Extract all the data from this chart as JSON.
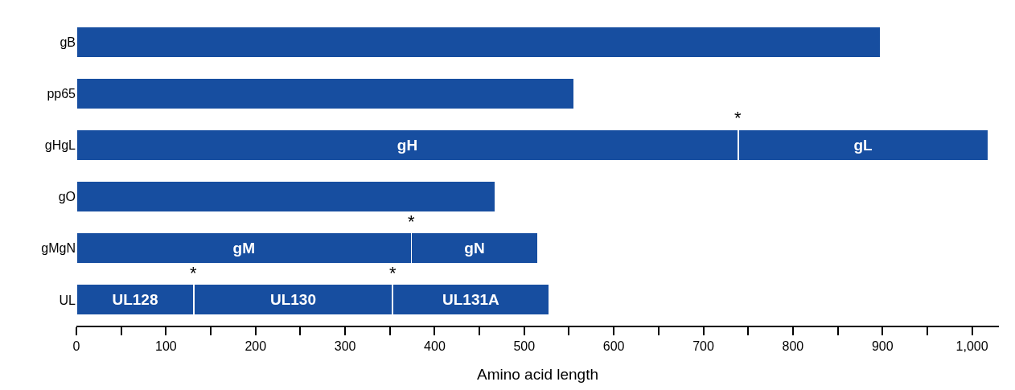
{
  "chart_data": {
    "type": "bar",
    "orientation": "horizontal",
    "stacked": true,
    "categories": [
      "gB",
      "pp65",
      "gHgL",
      "gO",
      "gMgN",
      "UL"
    ],
    "series": [
      {
        "color": "#174ea0",
        "values": [
          898,
          556,
          739,
          468,
          374,
          131
        ],
        "value_labels": [
          null,
          null,
          "gH",
          null,
          "gM",
          "UL128"
        ]
      },
      {
        "color": "#174ea0",
        "values": [
          null,
          null,
          279,
          null,
          141,
          222
        ],
        "value_labels": [
          null,
          null,
          "gL",
          null,
          "gN",
          "UL130"
        ]
      },
      {
        "color": "#174ea0",
        "values": [
          null,
          null,
          null,
          null,
          null,
          175
        ],
        "value_labels": [
          null,
          null,
          null,
          null,
          null,
          "UL131A"
        ]
      }
    ],
    "xlabel": "Amino acid length",
    "xlim": [
      0,
      1030
    ],
    "xticks": [
      0,
      {
        "value": 50,
        "label": null
      },
      100,
      {
        "value": 150,
        "label": null
      },
      200,
      {
        "value": 250,
        "label": null
      },
      300,
      {
        "value": 350,
        "label": null
      },
      400,
      {
        "value": 450,
        "label": null
      },
      500,
      {
        "value": 550,
        "label": null
      },
      600,
      {
        "value": 650,
        "label": null
      },
      700,
      {
        "value": 750,
        "label": null
      },
      800,
      {
        "value": 850,
        "label": null
      },
      900,
      {
        "value": 950,
        "label": null
      },
      {
        "value": 1000,
        "label": "1,000"
      }
    ],
    "annotations": [
      {
        "text": "*",
        "x": 739,
        "y": "gHgL"
      },
      {
        "text": "*",
        "x": 374,
        "y": "gMgN"
      },
      {
        "text": "*",
        "x": 131,
        "y": "UL"
      },
      {
        "text": "*",
        "x": 353,
        "y": "UL"
      }
    ]
  }
}
